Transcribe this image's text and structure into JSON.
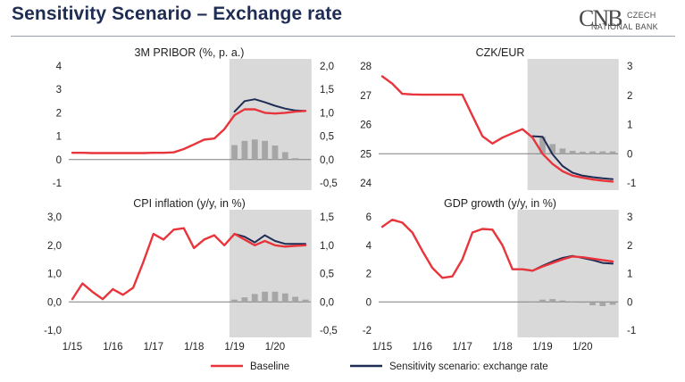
{
  "header": {
    "title": "Sensitivity Scenario – Exchange rate",
    "logo": {
      "mark": "CNB",
      "line1": "CZECH",
      "line2": "NATIONAL BANK"
    }
  },
  "colors": {
    "baseline": "#e8353b",
    "scenario": "#1f2d55",
    "bars": "#a6a6a6",
    "shade": "#d9d9d9",
    "zero_line": "#7f7f7f",
    "title": "#1f2d55"
  },
  "legend": [
    {
      "label": "Baseline",
      "color": "#e8353b"
    },
    {
      "label": "Sensitivity scenario: exchange rate",
      "color": "#1f2d55"
    }
  ],
  "chart_data": [
    {
      "type": "line",
      "title": "3M PRIBOR (%, p. a.)",
      "x_start": 0,
      "x_end": 23,
      "shade_from": 16,
      "ylim": [
        -1,
        4
      ],
      "left_ticks": [
        "-1",
        "0",
        "1",
        "2",
        "3",
        "4"
      ],
      "y2lim": [
        -0.5,
        2.0
      ],
      "right_ticks": [
        "-0,5",
        "0,0",
        "0,5",
        "1,0",
        "1,5",
        "2,0"
      ],
      "series": [
        {
          "name": "Baseline",
          "x": [
            0,
            1,
            2,
            3,
            4,
            5,
            6,
            7,
            8,
            9,
            10,
            11,
            12,
            13,
            14,
            15,
            16,
            17,
            18,
            19,
            20,
            21,
            22,
            23
          ],
          "y": [
            0.29,
            0.29,
            0.28,
            0.28,
            0.28,
            0.28,
            0.28,
            0.28,
            0.29,
            0.29,
            0.31,
            0.45,
            0.65,
            0.85,
            0.9,
            1.3,
            1.9,
            2.15,
            2.15,
            2.0,
            1.97,
            2.0,
            2.05,
            2.08
          ]
        },
        {
          "name": "Sensitivity scenario: exchange rate",
          "x": [
            16,
            17,
            18,
            19,
            20,
            21,
            22,
            23
          ],
          "y": [
            2.05,
            2.5,
            2.58,
            2.45,
            2.3,
            2.18,
            2.1,
            2.08
          ]
        }
      ],
      "bars": {
        "x": [
          16,
          17,
          18,
          19,
          20,
          21,
          22,
          23
        ],
        "values": [
          0.31,
          0.4,
          0.43,
          0.4,
          0.3,
          0.16,
          0.03,
          -0.01
        ]
      }
    },
    {
      "type": "line",
      "title": "CZK/EUR",
      "x_start": 0,
      "x_end": 23,
      "shade_from": 15,
      "ylim": [
        24,
        28
      ],
      "left_ticks": [
        "24",
        "25",
        "26",
        "27",
        "28"
      ],
      "y2lim": [
        -1,
        3
      ],
      "right_ticks": [
        "-1",
        "0",
        "1",
        "2",
        "3"
      ],
      "series": [
        {
          "name": "Baseline",
          "x": [
            0,
            1,
            2,
            3,
            4,
            5,
            6,
            7,
            8,
            9,
            10,
            11,
            12,
            13,
            14,
            15,
            16,
            17,
            18,
            19,
            20,
            21,
            22,
            23
          ],
          "y": [
            27.65,
            27.4,
            27.05,
            27.03,
            27.02,
            27.02,
            27.02,
            27.02,
            27.02,
            26.3,
            25.6,
            25.35,
            25.55,
            25.7,
            25.84,
            25.55,
            25.0,
            24.65,
            24.4,
            24.25,
            24.18,
            24.12,
            24.08,
            24.05
          ]
        },
        {
          "name": "Sensitivity scenario: exchange rate",
          "x": [
            15,
            16,
            17,
            18,
            19,
            20,
            21,
            22,
            23
          ],
          "y": [
            25.6,
            25.58,
            24.98,
            24.58,
            24.35,
            24.25,
            24.2,
            24.16,
            24.13
          ]
        }
      ],
      "bars": {
        "x": [
          15,
          16,
          17,
          18,
          19,
          20,
          21,
          22,
          23
        ],
        "values": [
          0.02,
          0.58,
          0.33,
          0.18,
          0.1,
          0.07,
          0.08,
          0.08,
          0.08
        ]
      }
    },
    {
      "type": "line",
      "title": "CPI inflation (y/y, in %)",
      "x_start": 0,
      "x_end": 23,
      "shade_from": 16,
      "ylim": [
        -1.0,
        3.0
      ],
      "left_ticks": [
        "-1,0",
        "0,0",
        "1,0",
        "2,0",
        "3,0"
      ],
      "y2lim": [
        -0.5,
        1.5
      ],
      "right_ticks": [
        "-0,5",
        "0,0",
        "0,5",
        "1,0",
        "1,5"
      ],
      "series": [
        {
          "name": "Baseline",
          "x": [
            0,
            1,
            2,
            3,
            4,
            5,
            6,
            7,
            8,
            9,
            10,
            11,
            12,
            13,
            14,
            15,
            16,
            17,
            18,
            19,
            20,
            21,
            22,
            23
          ],
          "y": [
            0.1,
            0.65,
            0.35,
            0.1,
            0.45,
            0.25,
            0.5,
            1.4,
            2.4,
            2.2,
            2.55,
            2.6,
            1.9,
            2.2,
            2.35,
            2.0,
            2.4,
            2.2,
            2.0,
            2.15,
            2.0,
            1.95,
            1.98,
            2.0
          ]
        },
        {
          "name": "Sensitivity scenario: exchange rate",
          "x": [
            16,
            17,
            18,
            19,
            20,
            21,
            22,
            23
          ],
          "y": [
            2.4,
            2.3,
            2.1,
            2.35,
            2.15,
            2.05,
            2.05,
            2.05
          ]
        }
      ],
      "bars": {
        "x": [
          16,
          17,
          18,
          19,
          20,
          21,
          22,
          23
        ],
        "values": [
          0.04,
          0.08,
          0.14,
          0.18,
          0.18,
          0.15,
          0.09,
          0.04
        ]
      }
    },
    {
      "type": "line",
      "title": "GDP growth (y/y, in %)",
      "x_start": 0,
      "x_end": 23,
      "shade_from": 14,
      "ylim": [
        -2,
        6
      ],
      "left_ticks": [
        "-2",
        "0",
        "2",
        "4",
        "6"
      ],
      "y2lim": [
        -1,
        3
      ],
      "right_ticks": [
        "-1",
        "0",
        "1",
        "2",
        "3"
      ],
      "series": [
        {
          "name": "Baseline",
          "x": [
            0,
            1,
            2,
            3,
            4,
            5,
            6,
            7,
            8,
            9,
            10,
            11,
            12,
            13,
            14,
            15,
            16,
            17,
            18,
            19,
            20,
            21,
            22,
            23
          ],
          "y": [
            5.3,
            5.8,
            5.6,
            4.9,
            3.6,
            2.4,
            1.7,
            1.8,
            3.0,
            4.9,
            5.15,
            5.1,
            4.0,
            2.3,
            2.3,
            2.2,
            2.5,
            2.75,
            3.0,
            3.2,
            3.15,
            3.05,
            2.95,
            2.85
          ]
        },
        {
          "name": "Sensitivity scenario: exchange rate",
          "x": [
            14,
            15,
            16,
            17,
            18,
            19,
            20,
            21,
            22,
            23
          ],
          "y": [
            2.3,
            2.2,
            2.55,
            2.85,
            3.1,
            3.25,
            3.1,
            2.95,
            2.75,
            2.7
          ]
        }
      ],
      "bars": {
        "x": [
          15,
          16,
          17,
          18,
          19,
          20,
          21,
          22,
          23
        ],
        "values": [
          0.0,
          0.08,
          0.1,
          0.05,
          0.0,
          -0.03,
          -0.12,
          -0.15,
          -0.1
        ]
      }
    }
  ],
  "x_axis": {
    "tick_positions": [
      0,
      4,
      8,
      12,
      16,
      20
    ],
    "tick_labels": [
      "1/15",
      "1/16",
      "1/17",
      "1/18",
      "1/19",
      "1/20"
    ]
  }
}
